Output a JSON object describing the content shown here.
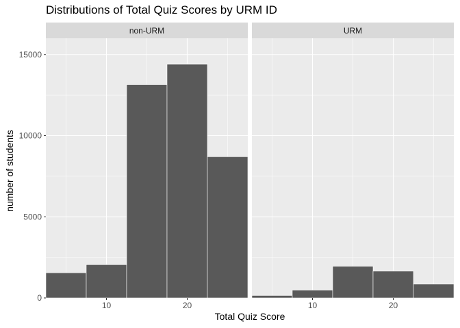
{
  "chart_data": {
    "type": "bar",
    "title": "Distributions of Total Quiz Scores by URM ID",
    "xlabel": "Total Quiz Score",
    "ylabel": "number of students",
    "ylim": [
      0,
      16000
    ],
    "xlim": [
      2.5,
      27.5
    ],
    "y_ticks": [
      0,
      5000,
      10000,
      15000
    ],
    "x_ticks": [
      10,
      20
    ],
    "bin_width": 5,
    "grid": true,
    "legend": "none",
    "bar_color": "#595959",
    "panel_background": "#ebebeb",
    "strip_background": "#d9d9d9",
    "panels": [
      {
        "name": "non-URM",
        "bins": [
          {
            "x": 5,
            "value": 1550
          },
          {
            "x": 10,
            "value": 2050
          },
          {
            "x": 15,
            "value": 13150
          },
          {
            "x": 20,
            "value": 14400
          },
          {
            "x": 25,
            "value": 8700
          }
        ]
      },
      {
        "name": "URM",
        "bins": [
          {
            "x": 5,
            "value": 150
          },
          {
            "x": 10,
            "value": 480
          },
          {
            "x": 15,
            "value": 1950
          },
          {
            "x": 20,
            "value": 1650
          },
          {
            "x": 25,
            "value": 850
          }
        ]
      }
    ]
  }
}
